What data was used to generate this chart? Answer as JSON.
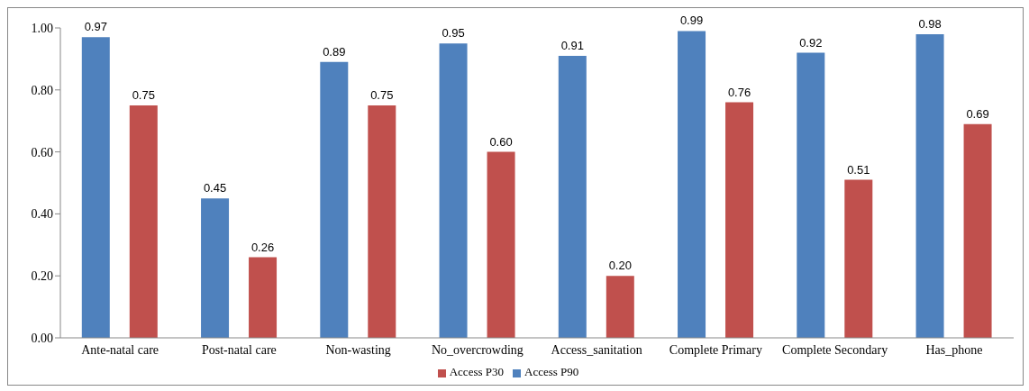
{
  "chart_data": {
    "type": "bar",
    "categories": [
      "Ante-natal care",
      "Post-natal care",
      "Non-wasting",
      "No_overcrowding",
      "Access_sanitation",
      "Complete Primary",
      "Complete Secondary",
      "Has_phone"
    ],
    "series": [
      {
        "name": "Access P90",
        "color": "#4f81bd",
        "values": [
          0.97,
          0.45,
          0.89,
          0.95,
          0.91,
          0.99,
          0.92,
          0.98
        ],
        "value_labels": [
          "0.97",
          "0.45",
          "0.89",
          "0.95",
          "0.91",
          "0.99",
          "0.92",
          "0.98"
        ]
      },
      {
        "name": "Access P30",
        "color": "#c0504d",
        "values": [
          0.75,
          0.26,
          0.75,
          0.6,
          0.2,
          0.76,
          0.51,
          0.69
        ],
        "value_labels": [
          "0.75",
          "0.26",
          "0.75",
          "0.60",
          "0.20",
          "0.76",
          "0.51",
          "0.69"
        ]
      }
    ],
    "ylim": [
      0,
      1
    ],
    "yticks": [
      {
        "value": 0,
        "label": "0.00"
      },
      {
        "value": 0.2,
        "label": "0.20"
      },
      {
        "value": 0.4,
        "label": "0.40"
      },
      {
        "value": 0.6,
        "label": "0.60"
      },
      {
        "value": 0.8,
        "label": "0.80"
      },
      {
        "value": 1,
        "label": "1.00"
      }
    ],
    "grid": false,
    "legend": "bottom"
  }
}
